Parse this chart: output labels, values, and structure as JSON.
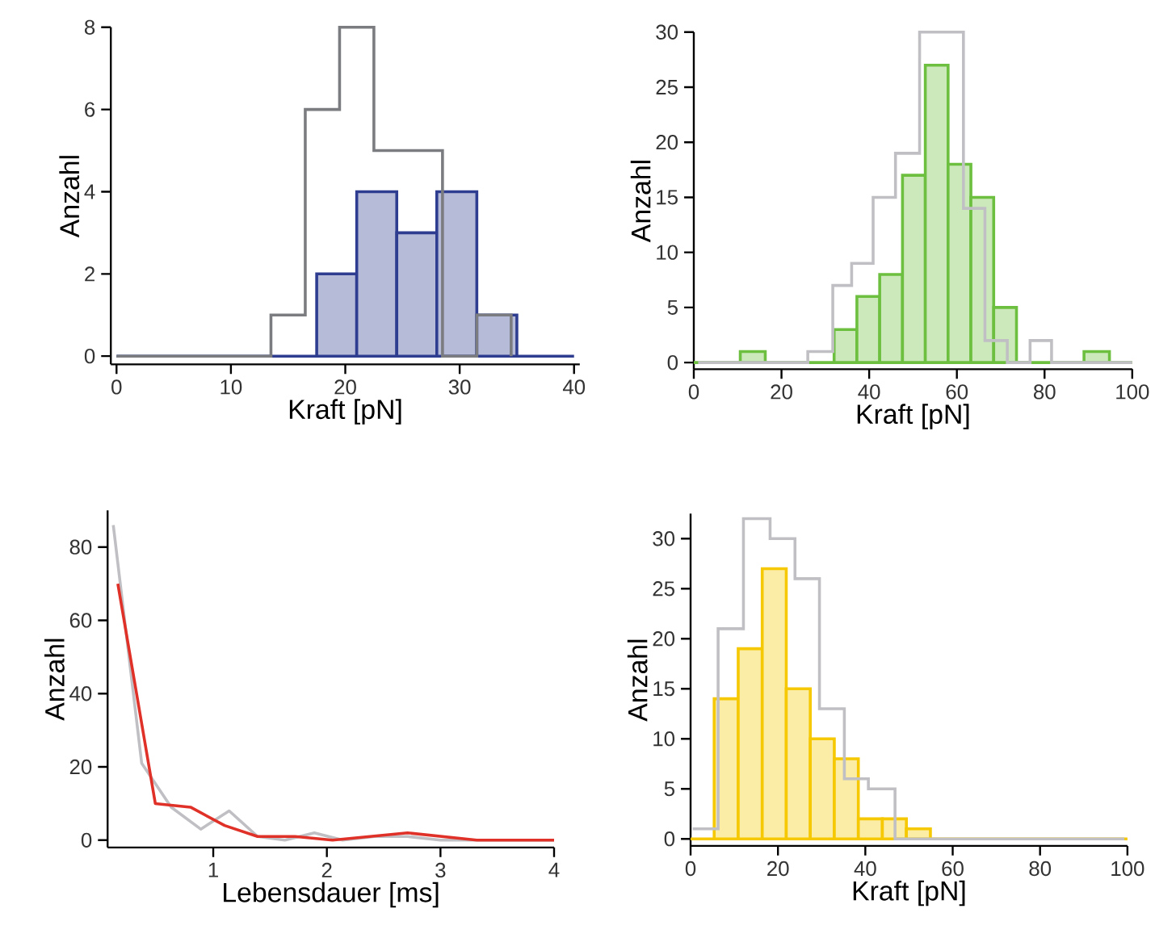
{
  "chart_data": [
    {
      "type": "histogram",
      "xlabel": "Kraft [pN]",
      "ylabel": "Anzahl",
      "xlim": [
        -0.5,
        40.5
      ],
      "ylim": [
        -0.2,
        8
      ],
      "xticks": [
        0,
        10,
        20,
        30,
        40
      ],
      "yticks": [
        0,
        2,
        4,
        6,
        8
      ],
      "series": [
        {
          "color": "#2e3d8f",
          "bins": [
            0,
            17.5,
            21,
            24.5,
            28,
            31.5,
            35,
            40
          ],
          "values": [
            0,
            2,
            4,
            3,
            4,
            1,
            0
          ]
        },
        {
          "type": "step",
          "color": "#7a7c7f",
          "x": [
            0,
            13.5,
            16.5,
            19.5,
            22.5,
            25.5,
            28.5,
            31.5,
            34.5
          ],
          "values": [
            0,
            1,
            6,
            8,
            5,
            5,
            0,
            1,
            0
          ]
        }
      ]
    },
    {
      "type": "histogram",
      "xlabel": "Kraft [pN]",
      "ylabel": "Anzahl",
      "xlim": [
        0,
        100
      ],
      "ylim": [
        -0.6,
        30
      ],
      "xticks": [
        0,
        20,
        40,
        60,
        80,
        100
      ],
      "yticks": [
        0,
        5,
        10,
        15,
        20,
        25,
        30
      ],
      "series": [
        {
          "color": "#6cbf3f",
          "bins": [
            0,
            10.6,
            16.3,
            32,
            37.2,
            42.4,
            47.6,
            52.8,
            58,
            63.2,
            68.4,
            73.6,
            89,
            94.8,
            100
          ],
          "values": [
            0,
            1,
            0,
            3,
            6,
            8,
            17,
            27,
            18,
            15,
            5,
            0,
            1,
            0
          ]
        },
        {
          "type": "step",
          "color": "#c0c0c4",
          "x": [
            1,
            26,
            31.7,
            36,
            40.9,
            46,
            51.5,
            61.5,
            66.4,
            71.5,
            76.7,
            81.6,
            100
          ],
          "values": [
            0,
            1,
            7,
            9,
            15,
            19,
            30,
            14,
            2,
            0,
            2,
            0,
            0
          ]
        }
      ]
    },
    {
      "type": "line",
      "xlabel": "Lebensdauer [ms]",
      "ylabel": "Anzahl",
      "xlim": [
        0.07,
        4
      ],
      "ylim": [
        -2,
        90
      ],
      "xticks": [
        1,
        2,
        3,
        4
      ],
      "yticks": [
        0,
        20,
        40,
        60,
        80
      ],
      "series": [
        {
          "color": "#c0c0c4",
          "x": [
            0.12,
            0.37,
            0.63,
            0.89,
            1.14,
            1.39,
            1.63,
            1.89,
            2.14,
            2.42,
            2.71,
            3.0,
            4.0
          ],
          "values": [
            86,
            21,
            9,
            3,
            8,
            1,
            0,
            2,
            0,
            1,
            1,
            0,
            0
          ]
        },
        {
          "color": "#e03128",
          "x": [
            0.16,
            0.49,
            0.8,
            1.1,
            1.39,
            1.72,
            2.05,
            2.71,
            3.32,
            4.0
          ],
          "values": [
            70,
            10,
            9,
            4,
            1,
            1,
            0,
            2,
            0,
            0
          ]
        }
      ]
    },
    {
      "type": "histogram",
      "xlabel": "Kraft [pN]",
      "ylabel": "Anzahl",
      "xlim": [
        0,
        100
      ],
      "ylim": [
        -0.7,
        32.5
      ],
      "xticks": [
        0,
        20,
        40,
        60,
        80,
        100
      ],
      "yticks": [
        0,
        5,
        10,
        15,
        20,
        25,
        30
      ],
      "series": [
        {
          "color": "#f5c800",
          "bins": [
            0,
            5.4,
            10.9,
            16.4,
            21.9,
            27.4,
            32.9,
            38.4,
            43.9,
            49.4,
            54.9,
            100
          ],
          "values": [
            0,
            14,
            19,
            27,
            15,
            10,
            8,
            2,
            2,
            1,
            0
          ]
        },
        {
          "type": "step",
          "color": "#c0c0c4",
          "x": [
            0.5,
            6.3,
            12.1,
            18.2,
            23.9,
            29.5,
            35.2,
            40.7,
            46.8,
            99.3
          ],
          "values": [
            1,
            21,
            32,
            30,
            26,
            13,
            6,
            5,
            0,
            0
          ]
        }
      ]
    }
  ]
}
